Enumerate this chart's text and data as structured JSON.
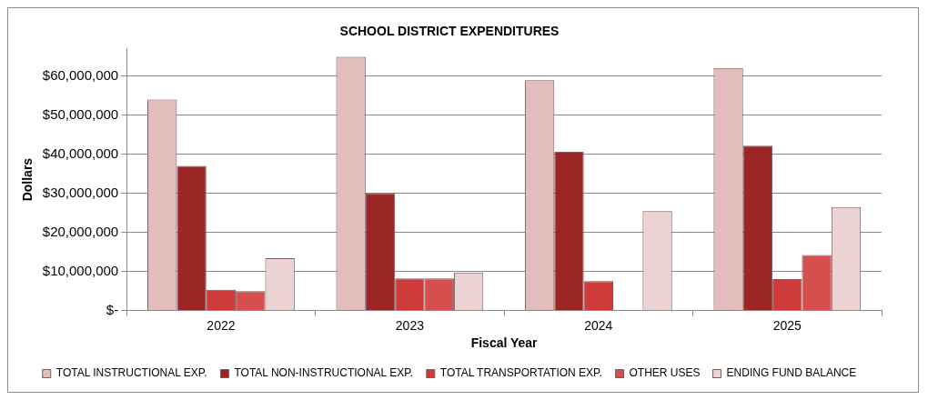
{
  "chart_data": {
    "type": "bar",
    "title": "SCHOOL DISTRICT EXPENDITURES",
    "xlabel": "Fiscal Year",
    "ylabel": "Dollars",
    "categories": [
      "2022",
      "2023",
      "2024",
      "2025"
    ],
    "series": [
      {
        "name": "TOTAL INSTRUCTIONAL EXP.",
        "color": "#e3bcbc",
        "values": [
          54000000,
          65000000,
          59000000,
          62100000
        ]
      },
      {
        "name": "TOTAL NON-INSTRUCTIONAL EXP.",
        "color": "#9c2626",
        "values": [
          37000000,
          30000000,
          40600000,
          42200000
        ]
      },
      {
        "name": "TOTAL TRANSPORTATION EXP.",
        "color": "#cf3b3b",
        "values": [
          5300000,
          8200000,
          7500000,
          8000000
        ]
      },
      {
        "name": "OTHER USES",
        "color": "#d64f4f",
        "values": [
          4900000,
          8200000,
          null,
          14200000
        ]
      },
      {
        "name": "ENDING FUND BALANCE",
        "color": "#ebd3d3",
        "values": [
          13400000,
          9700000,
          25400000,
          26500000
        ]
      }
    ],
    "ylim": [
      0,
      67000000
    ],
    "yticks": [
      {
        "value": 0,
        "label": "$-"
      },
      {
        "value": 10000000,
        "label": "$10,000,000"
      },
      {
        "value": 20000000,
        "label": "$20,000,000"
      },
      {
        "value": 30000000,
        "label": "$30,000,000"
      },
      {
        "value": 40000000,
        "label": "$40,000,000"
      },
      {
        "value": 50000000,
        "label": "$50,000,000"
      },
      {
        "value": 60000000,
        "label": "$60,000,000"
      }
    ],
    "grid": "y",
    "legend": "bottom"
  }
}
